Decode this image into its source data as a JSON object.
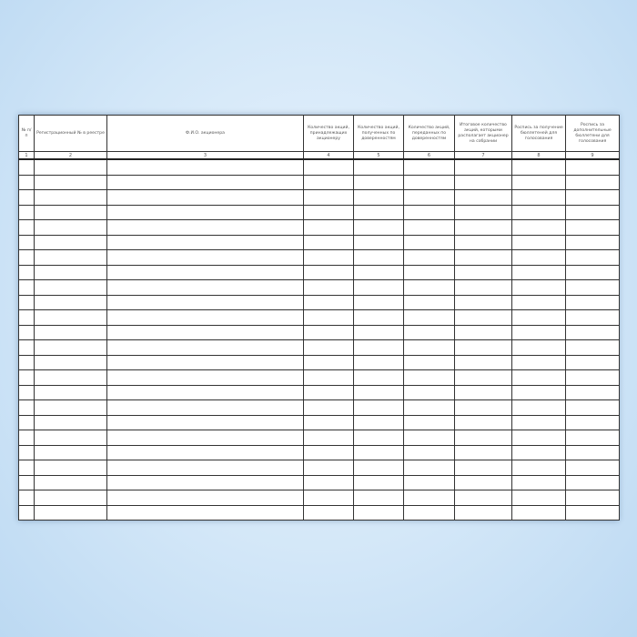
{
  "document": {
    "columns": [
      {
        "header": "№ п/п",
        "number": "1"
      },
      {
        "header": "Регистрационный № в реестре",
        "number": "2"
      },
      {
        "header": "Ф.И.О. акционера",
        "number": "3"
      },
      {
        "header": "Количество акций, принадлежащих акционеру",
        "number": "4"
      },
      {
        "header": "Количество акций, полученных по доверенностям",
        "number": "5"
      },
      {
        "header": "Количество акций, переданных по доверенностям",
        "number": "6"
      },
      {
        "header": "Итоговое количество акций, которыми располагает акционер на собрании",
        "number": "7"
      },
      {
        "header": "Роспись за получение бюллетеней для голосования",
        "number": "8"
      },
      {
        "header": "Роспись за дополнительные бюллетени для голосования",
        "number": "9"
      }
    ]
  }
}
